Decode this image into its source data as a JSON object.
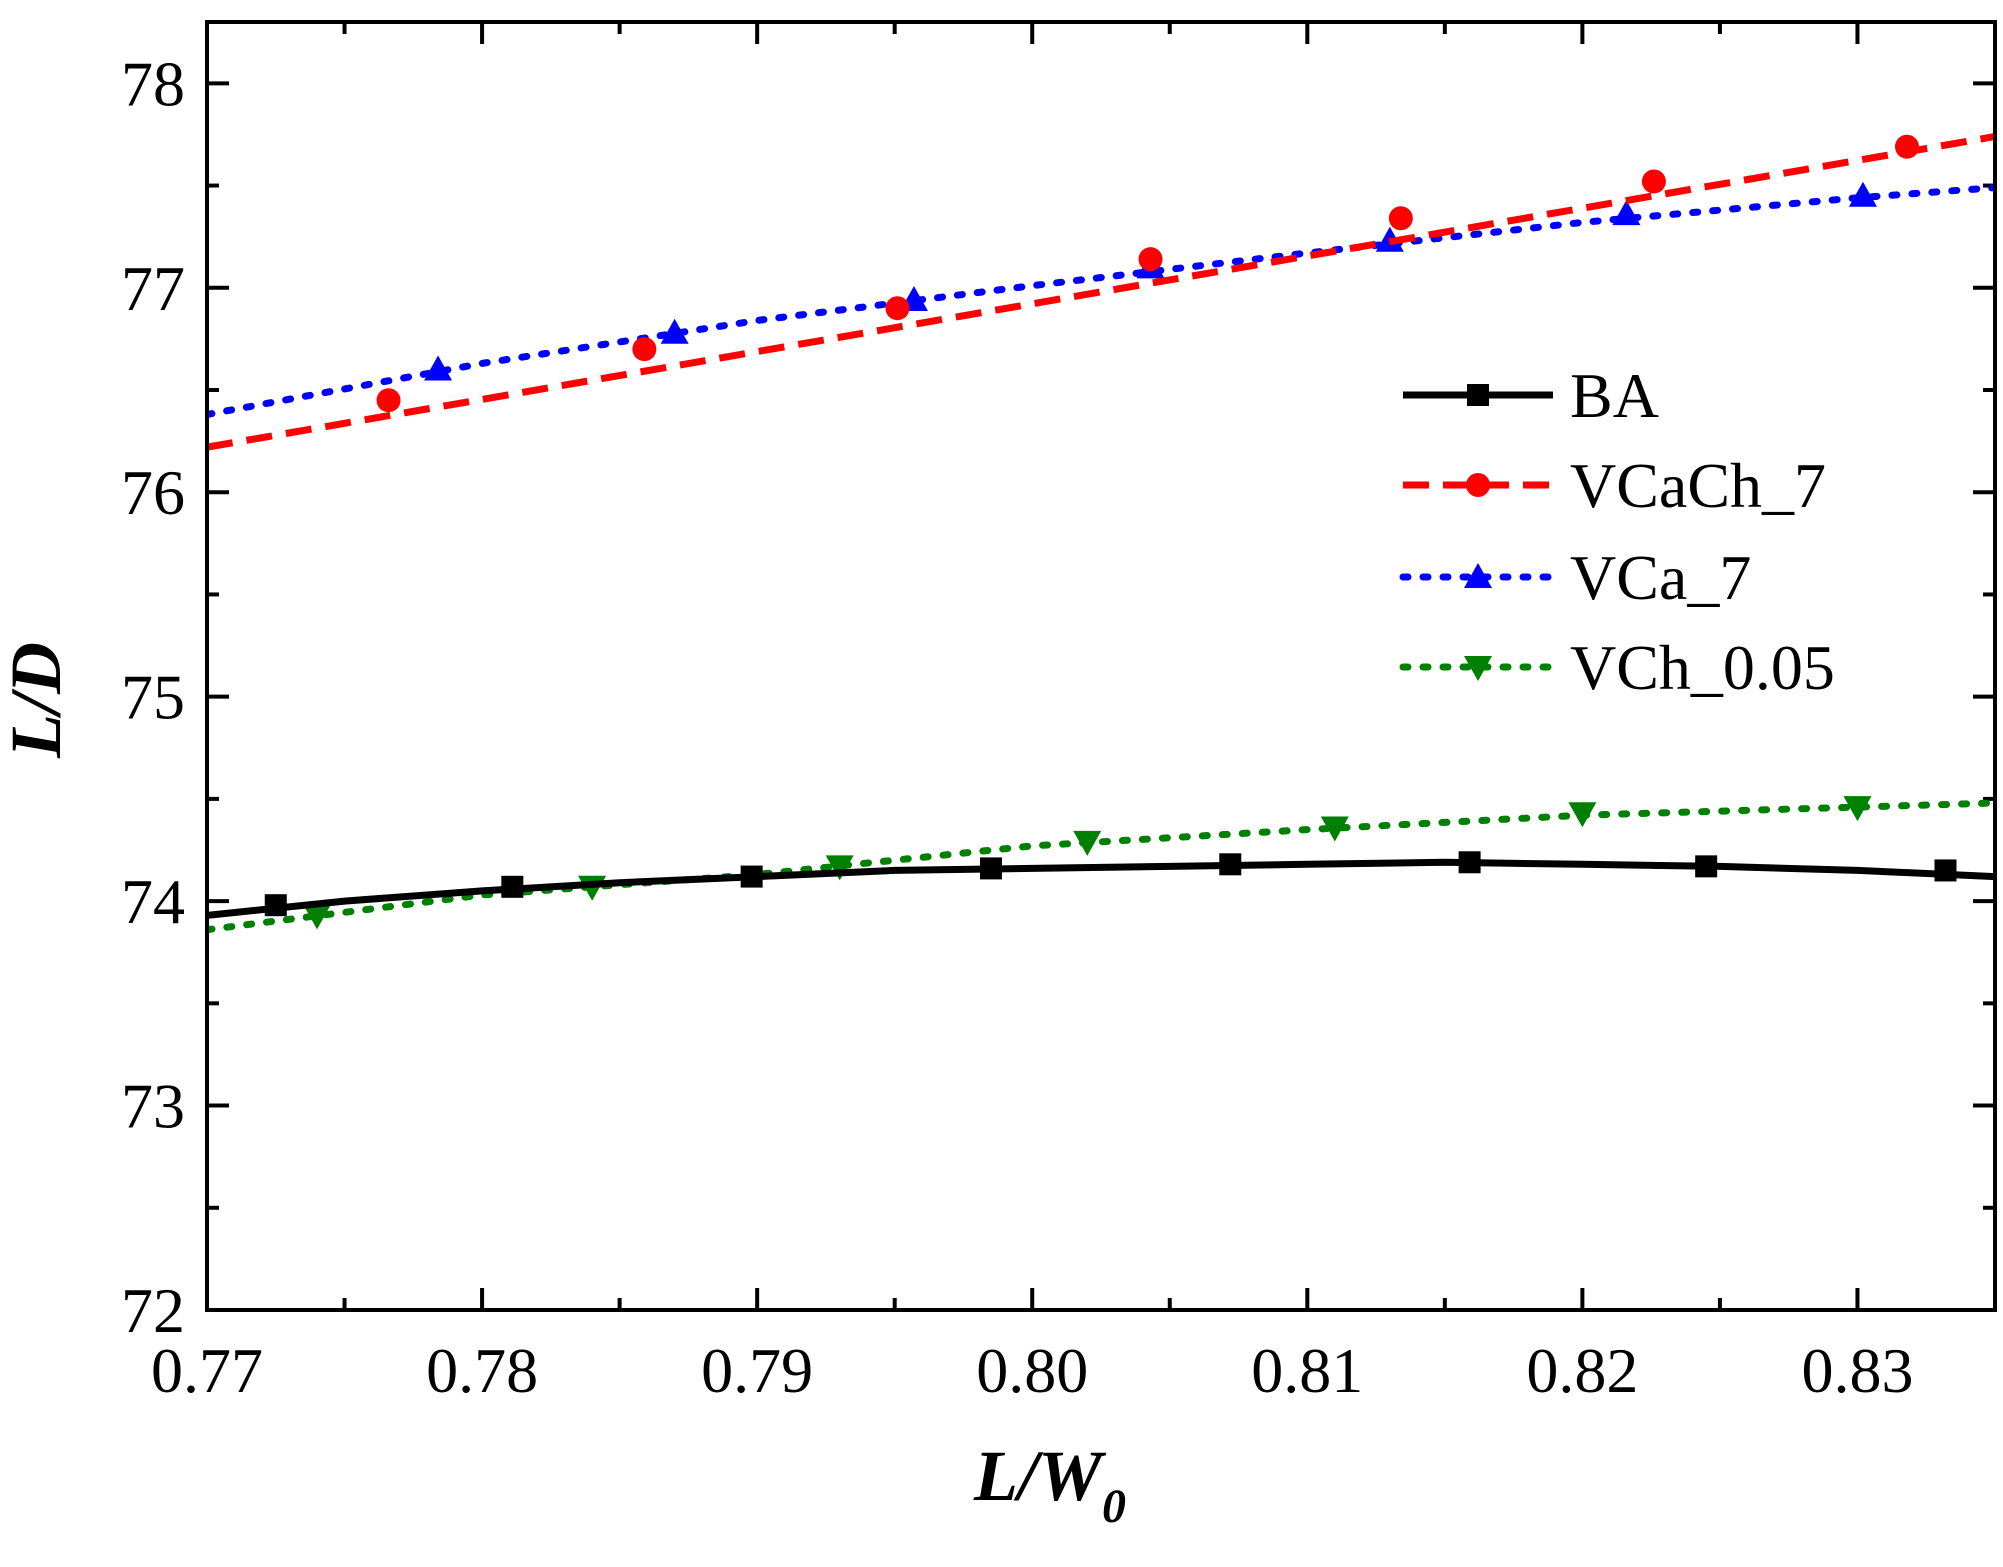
{
  "chart_data": {
    "type": "line",
    "title": "",
    "xlabel": "L/W",
    "xlabel_sub": "0",
    "ylabel": "L/D",
    "xlim": [
      0.77,
      0.835
    ],
    "ylim": [
      72,
      78.3
    ],
    "x_ticks": [
      0.77,
      0.78,
      0.79,
      0.8,
      0.81,
      0.82,
      0.83
    ],
    "x_tick_labels": [
      "0.77",
      "0.78",
      "0.79",
      "0.80",
      "0.81",
      "0.82",
      "0.83"
    ],
    "y_ticks": [
      72,
      73,
      74,
      75,
      76,
      77,
      78
    ],
    "y_tick_labels": [
      "72",
      "73",
      "74",
      "75",
      "76",
      "77",
      "78"
    ],
    "grid": false,
    "legend_position": "right",
    "series": [
      {
        "name": "BA",
        "color": "#000000",
        "line_style": "solid",
        "marker": "square",
        "line": [
          [
            0.77,
            73.93
          ],
          [
            0.775,
            74.0
          ],
          [
            0.78,
            74.05
          ],
          [
            0.785,
            74.09
          ],
          [
            0.79,
            74.12
          ],
          [
            0.795,
            74.15
          ],
          [
            0.8,
            74.16
          ],
          [
            0.805,
            74.17
          ],
          [
            0.81,
            74.18
          ],
          [
            0.815,
            74.19
          ],
          [
            0.82,
            74.18
          ],
          [
            0.825,
            74.17
          ],
          [
            0.83,
            74.15
          ],
          [
            0.835,
            74.12
          ]
        ],
        "markers": [
          [
            0.7725,
            73.98
          ],
          [
            0.7811,
            74.07
          ],
          [
            0.7898,
            74.12
          ],
          [
            0.7985,
            74.16
          ],
          [
            0.8072,
            74.18
          ],
          [
            0.8159,
            74.19
          ],
          [
            0.8245,
            74.17
          ],
          [
            0.8332,
            74.15
          ]
        ]
      },
      {
        "name": "VCaCh_7",
        "color": "#ff0000",
        "line_style": "dashed",
        "marker": "circle",
        "line": [
          [
            0.77,
            76.22
          ],
          [
            0.835,
            77.74
          ]
        ],
        "markers": [
          [
            0.7766,
            76.45
          ],
          [
            0.7859,
            76.7
          ],
          [
            0.7951,
            76.9
          ],
          [
            0.8043,
            77.14
          ],
          [
            0.8134,
            77.34
          ],
          [
            0.8226,
            77.52
          ],
          [
            0.8318,
            77.69
          ]
        ]
      },
      {
        "name": "VCa_7",
        "color": "#0000ff",
        "line_style": "dotted",
        "marker": "triangle-up",
        "line": [
          [
            0.77,
            76.38
          ],
          [
            0.78,
            76.63
          ],
          [
            0.79,
            76.84
          ],
          [
            0.8,
            77.01
          ],
          [
            0.81,
            77.17
          ],
          [
            0.82,
            77.32
          ],
          [
            0.83,
            77.44
          ],
          [
            0.835,
            77.49
          ]
        ],
        "markers": [
          [
            0.7784,
            76.6
          ],
          [
            0.787,
            76.78
          ],
          [
            0.7957,
            76.94
          ],
          [
            0.8043,
            77.1
          ],
          [
            0.813,
            77.23
          ],
          [
            0.8216,
            77.36
          ],
          [
            0.8302,
            77.45
          ]
        ]
      },
      {
        "name": "VCh_0.05",
        "color": "#008000",
        "line_style": "dotted",
        "marker": "triangle-down",
        "line": [
          [
            0.77,
            73.86
          ],
          [
            0.78,
            74.03
          ],
          [
            0.79,
            74.13
          ],
          [
            0.8,
            74.27
          ],
          [
            0.81,
            74.35
          ],
          [
            0.82,
            74.42
          ],
          [
            0.83,
            74.46
          ],
          [
            0.835,
            74.48
          ]
        ],
        "markers": [
          [
            0.774,
            73.93
          ],
          [
            0.784,
            74.07
          ],
          [
            0.793,
            74.17
          ],
          [
            0.802,
            74.29
          ],
          [
            0.811,
            74.36
          ],
          [
            0.82,
            74.43
          ],
          [
            0.83,
            74.46
          ]
        ]
      }
    ]
  }
}
